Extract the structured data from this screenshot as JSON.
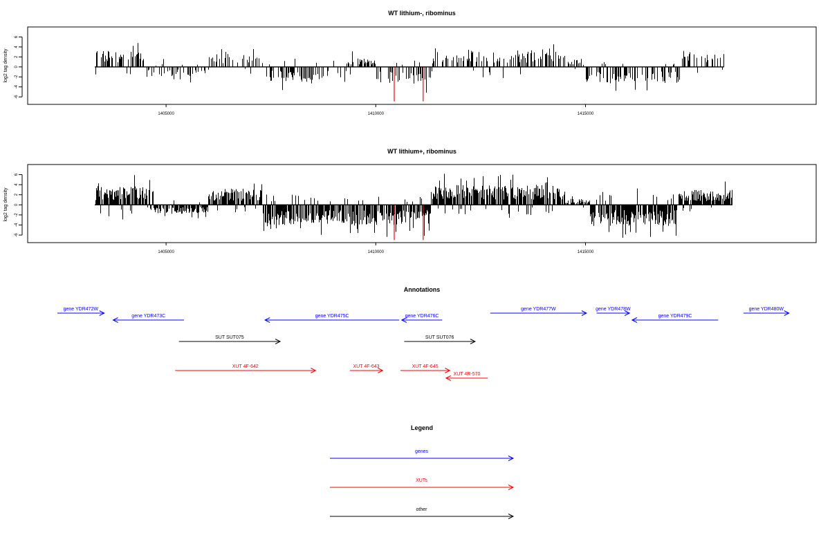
{
  "chart_data": [
    {
      "type": "bar",
      "title": "WT lithium-, ribominus",
      "ylabel": "log2 tag density",
      "xlim": [
        1401700,
        1420500
      ],
      "ylim": [
        -7.5,
        8
      ],
      "xticks": [
        "1405000",
        "1410000",
        "1415000"
      ],
      "yticks": [
        "-6",
        "-4",
        "-2",
        "0",
        "2",
        "4",
        "6"
      ],
      "data_range": [
        1403300,
        1418300
      ],
      "highlight": [
        {
          "x": 1410440,
          "value": -6.9,
          "color": "#ff0000"
        },
        {
          "x": 1411130,
          "value": -6.9,
          "color": "#ff0000"
        }
      ],
      "seed": 7,
      "density": 0.42,
      "regions": [
        {
          "from": 1403300,
          "to": 1404500,
          "sign": 1,
          "amp": 3.2
        },
        {
          "from": 1404500,
          "to": 1406000,
          "sign": -1,
          "amp": 2.0
        },
        {
          "from": 1406000,
          "to": 1407300,
          "sign": 1,
          "amp": 2.6
        },
        {
          "from": 1407300,
          "to": 1409300,
          "sign": -1,
          "amp": 3.0
        },
        {
          "from": 1409300,
          "to": 1410000,
          "sign": 1,
          "amp": 2.0
        },
        {
          "from": 1410000,
          "to": 1411300,
          "sign": -1,
          "amp": 3.4
        },
        {
          "from": 1411300,
          "to": 1412200,
          "sign": 1,
          "amp": 2.4
        },
        {
          "from": 1412200,
          "to": 1414500,
          "sign": 1,
          "amp": 3.4
        },
        {
          "from": 1414500,
          "to": 1415000,
          "sign": 1,
          "amp": 1.6
        },
        {
          "from": 1415000,
          "to": 1417300,
          "sign": -1,
          "amp": 3.2
        },
        {
          "from": 1417300,
          "to": 1418300,
          "sign": 1,
          "amp": 2.6
        }
      ]
    },
    {
      "type": "bar",
      "title": "WT lithium+, ribominus",
      "ylabel": "log2 tag density",
      "xlim": [
        1401700,
        1420500
      ],
      "ylim": [
        -7.5,
        8
      ],
      "xticks": [
        "1405000",
        "1410000",
        "1415000"
      ],
      "yticks": [
        "-6",
        "-4",
        "-2",
        "0",
        "2",
        "4",
        "6"
      ],
      "data_range": [
        1403300,
        1418500
      ],
      "highlight": [
        {
          "x": 1410440,
          "value": -7.0,
          "color": "#ff0000"
        },
        {
          "x": 1411130,
          "value": -7.0,
          "color": "#ff0000"
        }
      ],
      "seed": 19,
      "density": 0.85,
      "regions": [
        {
          "from": 1403300,
          "to": 1404700,
          "sign": 1,
          "amp": 3.8
        },
        {
          "from": 1404700,
          "to": 1406000,
          "sign": -1,
          "amp": 1.8
        },
        {
          "from": 1406000,
          "to": 1407300,
          "sign": 1,
          "amp": 3.2
        },
        {
          "from": 1407300,
          "to": 1410300,
          "sign": -1,
          "amp": 4.0
        },
        {
          "from": 1410300,
          "to": 1411300,
          "sign": -1,
          "amp": 4.0
        },
        {
          "from": 1411300,
          "to": 1414500,
          "sign": 1,
          "amp": 4.0
        },
        {
          "from": 1414500,
          "to": 1415100,
          "sign": 1,
          "amp": 1.2
        },
        {
          "from": 1415100,
          "to": 1417200,
          "sign": -1,
          "amp": 4.2
        },
        {
          "from": 1417200,
          "to": 1418500,
          "sign": 1,
          "amp": 3.0
        }
      ]
    }
  ],
  "annotations": {
    "title": "Annotations",
    "colors": {
      "gene": "#0000ff",
      "xut": "#ff0000",
      "other": "#000000"
    },
    "features": [
      {
        "label": "gene YDR472W",
        "kind": "gene",
        "start": 1403300,
        "end": 1405150,
        "strand": "+",
        "row": 0
      },
      {
        "label": "gene YDR473C",
        "kind": "gene",
        "start": 1405500,
        "end": 1408300,
        "strand": "-",
        "row": 1
      },
      {
        "label": "gene YDR475C",
        "kind": "gene",
        "start": 1411500,
        "end": 1416800,
        "strand": "-",
        "row": 1
      },
      {
        "label": "gene YDR476C",
        "kind": "gene",
        "start": 1416900,
        "end": 1418500,
        "strand": "-",
        "row": 1
      },
      {
        "label": "gene YDR477W",
        "kind": "gene",
        "start": 1420400,
        "end": 1424200,
        "strand": "+",
        "row": 0
      },
      {
        "label": "gene YDR478W",
        "kind": "gene",
        "start": 1424600,
        "end": 1425900,
        "strand": "+",
        "row": 0
      },
      {
        "label": "gene YDR479C",
        "kind": "gene",
        "start": 1426000,
        "end": 1429400,
        "strand": "-",
        "row": 1
      },
      {
        "label": "gene YDR480W",
        "kind": "gene",
        "start": 1430400,
        "end": 1432200,
        "strand": "+",
        "row": 0
      },
      {
        "label": "SUT SUT075",
        "kind": "other",
        "start": 1408100,
        "end": 1412100,
        "strand": "+",
        "row": 2
      },
      {
        "label": "SUT SUT076",
        "kind": "other",
        "start": 1417000,
        "end": 1419800,
        "strand": "+",
        "row": 2
      },
      {
        "label": "XUT 4F-642",
        "kind": "xut",
        "start": 1407950,
        "end": 1413500,
        "strand": "+",
        "row": 3
      },
      {
        "label": "XUT 4F-643",
        "kind": "xut",
        "start": 1414850,
        "end": 1416150,
        "strand": "+",
        "row": 3
      },
      {
        "label": "XUT 4F-645",
        "kind": "xut",
        "start": 1416850,
        "end": 1418800,
        "strand": "+",
        "row": 3
      },
      {
        "label": "XUT 4R-570",
        "kind": "xut",
        "start": 1418650,
        "end": 1420300,
        "strand": "-",
        "row": 4
      }
    ]
  },
  "legend": {
    "title": "Legend",
    "items": [
      {
        "label": "genes",
        "color": "#0000ff"
      },
      {
        "label": "XUTs",
        "color": "#ff0000"
      },
      {
        "label": "other",
        "color": "#000000"
      }
    ]
  }
}
